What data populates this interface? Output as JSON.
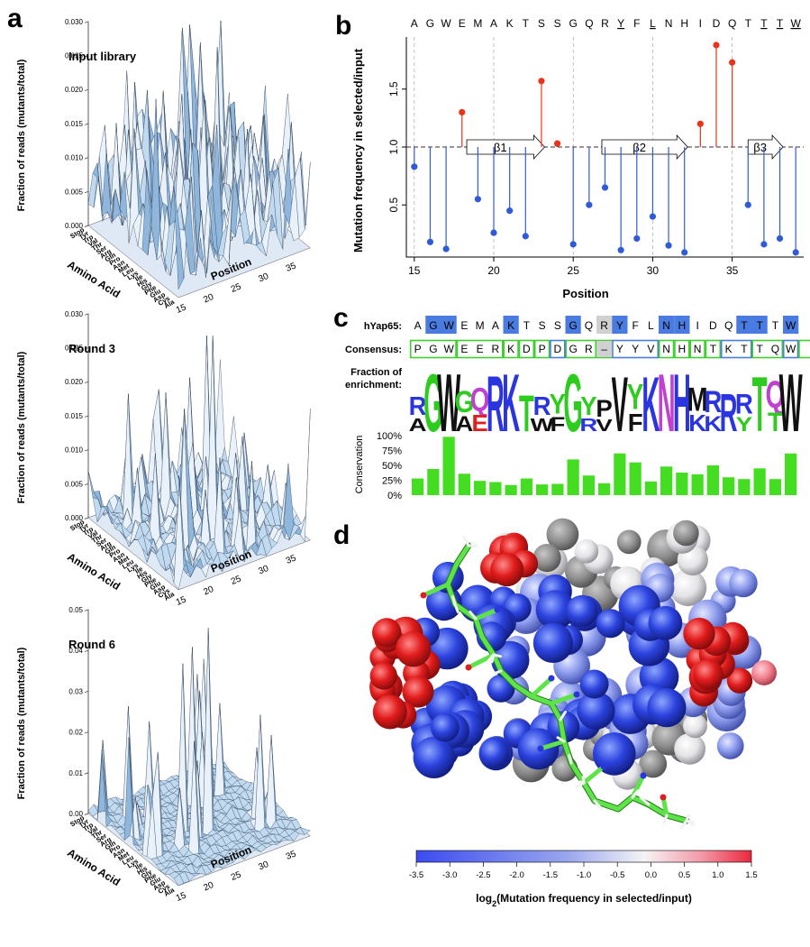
{
  "panel_labels": {
    "a": "a",
    "b": "b",
    "c": "c",
    "d": "d"
  },
  "colors": {
    "surface_fill": "#c2daf0",
    "surface_shade": "#8fb6dc",
    "enriched": "#e8341c",
    "depleted": "#2f5bd6",
    "identity_box": "#4a7be0",
    "consensus_box": "#3ecf2e",
    "conservation_bar": "#44dd22"
  },
  "chart_data": [
    {
      "id": "surface-input",
      "type": "surface3d",
      "title": "Input library",
      "zlabel": "Fraction of reads (mutants/total)",
      "ylabel": "Amino Acid",
      "xlabel": "Position",
      "zlim": [
        0,
        0.03
      ],
      "zticks": [
        "0.000",
        "0.005",
        "0.010",
        "0.015",
        "0.020",
        "0.025",
        "0.030"
      ],
      "xticks": [
        "15",
        "20",
        "25",
        "30",
        "35"
      ],
      "amino_acids": [
        "Stop",
        "Tyr",
        "Trp",
        "Val",
        "Thr",
        "Ser",
        "Arg",
        "Gln",
        "Pro",
        "Asn",
        "Met",
        "Leu",
        "Lys",
        "Ile",
        "His",
        "Gly",
        "Phe",
        "Glu",
        "Asp",
        "Cys",
        "Ala"
      ],
      "peak_fraction": 0.031
    },
    {
      "id": "surface-round3",
      "type": "surface3d",
      "title": "Round 3",
      "zlabel": "Fraction of reads (mutants/total)",
      "ylabel": "Amino Acid",
      "xlabel": "Position",
      "zlim": [
        0,
        0.03
      ],
      "zticks": [
        "0.000",
        "0.005",
        "0.010",
        "0.015",
        "0.020",
        "0.025",
        "0.030"
      ],
      "xticks": [
        "15",
        "20",
        "25",
        "30",
        "35"
      ],
      "amino_acids": [
        "Stop",
        "Tyr",
        "Trp",
        "Val",
        "Thr",
        "Ser",
        "Arg",
        "Gln",
        "Pro",
        "Asn",
        "Met",
        "Leu",
        "Lys",
        "Ile",
        "His",
        "Gly",
        "Phe",
        "Glu",
        "Asp",
        "Cys",
        "Ala"
      ],
      "peak_fraction": 0.03
    },
    {
      "id": "surface-round6",
      "type": "surface3d",
      "title": "Round 6",
      "zlabel": "Fraction of reads (mutants/total)",
      "ylabel": "Amino Acid",
      "xlabel": "Position",
      "zlim": [
        0,
        0.05
      ],
      "zticks": [
        "0.00",
        "0.01",
        "0.02",
        "0.03",
        "0.04",
        "0.05"
      ],
      "xticks": [
        "15",
        "20",
        "25",
        "30",
        "35"
      ],
      "amino_acids": [
        "Stop",
        "Tyr",
        "Trp",
        "Val",
        "Thr",
        "Ser",
        "Arg",
        "Gln",
        "Pro",
        "Asn",
        "Met",
        "Leu",
        "Lys",
        "Ile",
        "His",
        "Gly",
        "Phe",
        "Glu",
        "Asp",
        "Cys",
        "Ala"
      ],
      "peak_fraction": 0.05
    },
    {
      "id": "lollipop-b",
      "type": "lollipop",
      "xlabel": "Position",
      "ylabel": "Mutation frequency in selected/input",
      "baseline": 1.0,
      "ylim": [
        0.05,
        1.95
      ],
      "xlim": [
        14.5,
        39.5
      ],
      "xticks": [
        15,
        20,
        25,
        30,
        35
      ],
      "yticks": [
        "0.5",
        "1.0",
        "1.5"
      ],
      "sequence": [
        "A",
        "G",
        "W",
        "E",
        "M",
        "A",
        "K",
        "T",
        "S",
        "S",
        "G",
        "Q",
        "R",
        "Y",
        "F",
        "L",
        "N",
        "H",
        "I",
        "D",
        "Q",
        "T",
        "T",
        "T",
        "W"
      ],
      "underlined_positions": [
        28,
        30,
        37,
        38,
        39
      ],
      "dashed_positions": [
        15,
        20,
        25,
        30,
        35
      ],
      "positions": [
        15,
        16,
        17,
        18,
        19,
        20,
        21,
        22,
        23,
        24,
        25,
        26,
        27,
        28,
        29,
        30,
        31,
        32,
        33,
        34,
        35,
        36,
        37,
        38,
        39
      ],
      "values": [
        0.83,
        0.18,
        0.12,
        1.3,
        0.55,
        0.26,
        0.45,
        0.23,
        1.57,
        1.03,
        0.16,
        0.5,
        0.65,
        0.11,
        0.21,
        0.4,
        0.15,
        0.09,
        1.2,
        1.88,
        1.73,
        0.5,
        0.16,
        0.21,
        0.09
      ],
      "strands": [
        {
          "label": "β1",
          "from": 18.3,
          "to": 23.2
        },
        {
          "label": "β2",
          "from": 26.8,
          "to": 32.2
        },
        {
          "label": "β3",
          "from": 36.0,
          "to": 38.2
        }
      ]
    },
    {
      "id": "logo-c",
      "type": "sequence_logo",
      "row1_label": "hYap65:",
      "row2_label": "Consensus:",
      "row3_label_a": "Fraction of",
      "row3_label_b": "enrichment:",
      "hyap65": [
        "A",
        "G",
        "W",
        "E",
        "M",
        "A",
        "K",
        "T",
        "S",
        "S",
        "G",
        "Q",
        "R",
        "Y",
        "F",
        "L",
        "N",
        "H",
        "I",
        "D",
        "Q",
        "T",
        "T",
        "T",
        "W"
      ],
      "hyap65_highlight": [
        false,
        true,
        true,
        false,
        false,
        false,
        true,
        false,
        false,
        false,
        true,
        false,
        false,
        true,
        false,
        false,
        true,
        true,
        false,
        false,
        false,
        true,
        true,
        false,
        true
      ],
      "hyap65_gray": [
        false,
        false,
        false,
        false,
        false,
        false,
        false,
        false,
        false,
        false,
        false,
        false,
        true,
        false,
        false,
        false,
        false,
        false,
        false,
        false,
        false,
        false,
        false,
        false,
        false
      ],
      "consensus": [
        "P",
        "G",
        "W",
        "E",
        "E",
        "R",
        "K",
        "D",
        "P",
        "D",
        "G",
        "R",
        "–",
        "Y",
        "Y",
        "V",
        "N",
        "H",
        "N",
        "T",
        "K",
        "T",
        "T",
        "Q",
        "W"
      ],
      "consensus_group_widths": [
        3,
        3,
        1,
        1,
        1,
        1,
        2,
        1,
        3,
        1,
        1,
        1,
        1,
        2,
        2,
        1,
        1
      ],
      "conservation_label": "Conservation",
      "conservation_ticks": [
        "100%",
        "75%",
        "50%",
        "25%",
        "0%"
      ],
      "conservation": [
        0.28,
        0.44,
        0.98,
        0.36,
        0.24,
        0.22,
        0.17,
        0.28,
        0.18,
        0.19,
        0.6,
        0.33,
        0.2,
        0.7,
        0.55,
        0.23,
        0.48,
        0.38,
        0.35,
        0.5,
        0.3,
        0.27,
        0.45,
        0.27,
        0.7
      ],
      "logo_top": [
        "R",
        "G",
        "W",
        "G",
        "Q",
        "R",
        "K",
        "T",
        "R",
        "Y",
        "G",
        "Y",
        "P",
        "V",
        "Y",
        "K",
        "N",
        "H",
        "M",
        "R",
        "R",
        "R",
        "T",
        "Q",
        "W"
      ],
      "logo_bottom": [
        "A",
        "G",
        "W",
        "A",
        "E",
        "A",
        "K",
        "T",
        "W",
        "F",
        "G",
        "R",
        "V",
        "V",
        "F",
        "L",
        "N",
        "H",
        "K",
        "K",
        "R",
        "Y",
        "T",
        "T",
        "W"
      ]
    },
    {
      "id": "colorbar-d",
      "type": "colorbar",
      "label": "log",
      "label_sub": "2",
      "label_rest": "(Mutation frequency in selected/input)",
      "ticks": [
        "-3.5",
        "-3.0",
        "-2.5",
        "-2.0",
        "-1.5",
        "-1.0",
        "-0.5",
        "0.0",
        "0.5",
        "1.0",
        "1.5"
      ]
    }
  ]
}
